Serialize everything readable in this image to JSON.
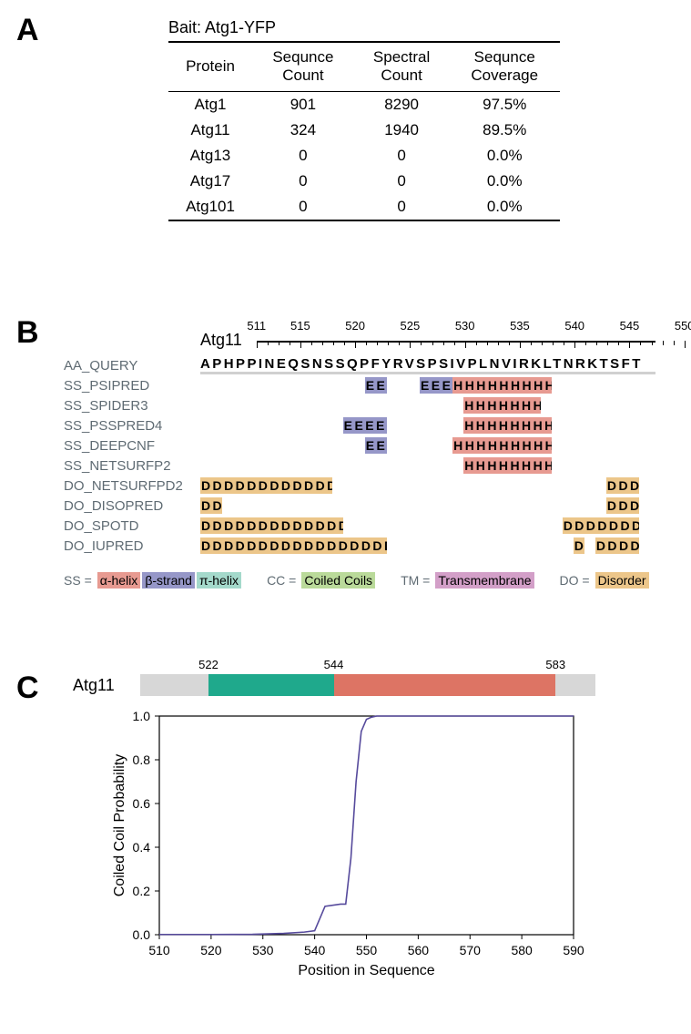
{
  "colors": {
    "border": "#000000",
    "helix": "#e79a91",
    "strand": "#9697c8",
    "pihelix": "#a4d9cb",
    "coiledcoil": "#bada9a",
    "transmembrane": "#d39fc8",
    "disorder": "#ecc68a",
    "domain_gray": "#d7d7d7",
    "domain_green": "#1fa98c",
    "domain_red": "#dd7464",
    "plot_line": "#564a9c",
    "method_text": "#5f6b73"
  },
  "panelA": {
    "label": "A",
    "bait": "Bait: Atg1-YFP",
    "columns": [
      "Protein",
      "Sequnce\nCount",
      "Spectral\nCount",
      "Sequnce\nCoverage"
    ],
    "rows": [
      [
        "Atg1",
        "901",
        "8290",
        "97.5%"
      ],
      [
        "Atg11",
        "324",
        "1940",
        "89.5%"
      ],
      [
        "Atg13",
        "0",
        "0",
        "0.0%"
      ],
      [
        "Atg17",
        "0",
        "0",
        "0.0%"
      ],
      [
        "Atg101",
        "0",
        "0",
        "0.0%"
      ]
    ]
  },
  "panelB": {
    "label": "B",
    "protein": "Atg11",
    "range": [
      511,
      550
    ],
    "major_ticks": [
      511,
      515,
      520,
      525,
      530,
      535,
      540,
      545,
      550
    ],
    "query_seq": "APHPPINEQSNSSQPFYRVSPSIVPLNVIRKLTNRKTSFT",
    "methods": [
      {
        "name": "AA_QUERY",
        "type": "query"
      },
      {
        "name": "SS_PSIPRED",
        "segs": [
          {
            "s": 526,
            "e": 527,
            "c": "E",
            "col": "strand"
          },
          {
            "s": 531,
            "e": 533,
            "c": "E",
            "col": "strand"
          },
          {
            "s": 534,
            "e": 542,
            "c": "H",
            "col": "helix"
          }
        ]
      },
      {
        "name": "SS_SPIDER3",
        "segs": [
          {
            "s": 535,
            "e": 541,
            "c": "H",
            "col": "helix"
          }
        ]
      },
      {
        "name": "SS_PSSPRED4",
        "segs": [
          {
            "s": 524,
            "e": 527,
            "c": "E",
            "col": "strand"
          },
          {
            "s": 535,
            "e": 542,
            "c": "H",
            "col": "helix"
          }
        ]
      },
      {
        "name": "SS_DEEPCNF",
        "segs": [
          {
            "s": 526,
            "e": 527,
            "c": "E",
            "col": "strand"
          },
          {
            "s": 534,
            "e": 542,
            "c": "H",
            "col": "helix"
          }
        ]
      },
      {
        "name": "SS_NETSURFP2",
        "segs": [
          {
            "s": 535,
            "e": 542,
            "c": "H",
            "col": "helix"
          }
        ]
      },
      {
        "name": "DO_NETSURFPD2",
        "segs": [
          {
            "s": 511,
            "e": 522,
            "c": "D",
            "col": "disorder"
          },
          {
            "s": 548,
            "e": 550,
            "c": "D",
            "col": "disorder"
          }
        ]
      },
      {
        "name": "DO_DISOPRED",
        "segs": [
          {
            "s": 511,
            "e": 512,
            "c": "D",
            "col": "disorder"
          },
          {
            "s": 548,
            "e": 550,
            "c": "D",
            "col": "disorder"
          }
        ]
      },
      {
        "name": "DO_SPOTD",
        "segs": [
          {
            "s": 511,
            "e": 523,
            "c": "D",
            "col": "disorder"
          },
          {
            "s": 544,
            "e": 550,
            "c": "D",
            "col": "disorder"
          }
        ]
      },
      {
        "name": "DO_IUPRED",
        "segs": [
          {
            "s": 511,
            "e": 527,
            "c": "D",
            "col": "disorder"
          },
          {
            "s": 545,
            "e": 545,
            "c": "D",
            "col": "disorder"
          },
          {
            "s": 547,
            "e": 550,
            "c": "D",
            "col": "disorder"
          }
        ]
      }
    ],
    "legend": {
      "ss": {
        "prefix": "SS =",
        "items": [
          {
            "label": "α-helix",
            "col": "helix"
          },
          {
            "label": "β-strand",
            "col": "strand"
          },
          {
            "label": "π-helix",
            "col": "pihelix"
          }
        ]
      },
      "cc": {
        "prefix": "CC =",
        "items": [
          {
            "label": "Coiled Coils",
            "col": "coiledcoil"
          }
        ]
      },
      "tm": {
        "prefix": "TM =",
        "items": [
          {
            "label": "Transmembrane",
            "col": "transmembrane"
          }
        ]
      },
      "do": {
        "prefix": "DO =",
        "items": [
          {
            "label": "Disorder",
            "col": "disorder"
          }
        ]
      }
    }
  },
  "panelC": {
    "label": "C",
    "protein": "Atg11",
    "bar_range": [
      510,
      590
    ],
    "bar_positions": [
      522,
      544,
      583
    ],
    "bar_segments": [
      {
        "s": 510,
        "e": 522,
        "col": "domain_gray"
      },
      {
        "s": 522,
        "e": 544,
        "col": "domain_green"
      },
      {
        "s": 544,
        "e": 583,
        "col": "domain_red"
      },
      {
        "s": 583,
        "e": 590,
        "col": "domain_gray"
      }
    ],
    "chart": {
      "xlabel": "Position in Sequence",
      "ylabel": "Coiled Coil Probability",
      "xlim": [
        510,
        590
      ],
      "ylim": [
        0.0,
        1.0
      ],
      "xticks": [
        510,
        520,
        530,
        540,
        550,
        560,
        570,
        580,
        590
      ],
      "yticks": [
        0.0,
        0.2,
        0.4,
        0.6,
        0.8,
        1.0
      ],
      "line_color": "plot_line",
      "data": [
        [
          510,
          0.001
        ],
        [
          520,
          0.001
        ],
        [
          528,
          0.002
        ],
        [
          534,
          0.006
        ],
        [
          538,
          0.012
        ],
        [
          540,
          0.018
        ],
        [
          542,
          0.13
        ],
        [
          545,
          0.14
        ],
        [
          546,
          0.14
        ],
        [
          547,
          0.35
        ],
        [
          548,
          0.7
        ],
        [
          549,
          0.93
        ],
        [
          550,
          0.985
        ],
        [
          551,
          0.995
        ],
        [
          552,
          1.0
        ],
        [
          560,
          1.0
        ],
        [
          570,
          1.0
        ],
        [
          580,
          1.0
        ],
        [
          590,
          1.0
        ]
      ]
    }
  }
}
